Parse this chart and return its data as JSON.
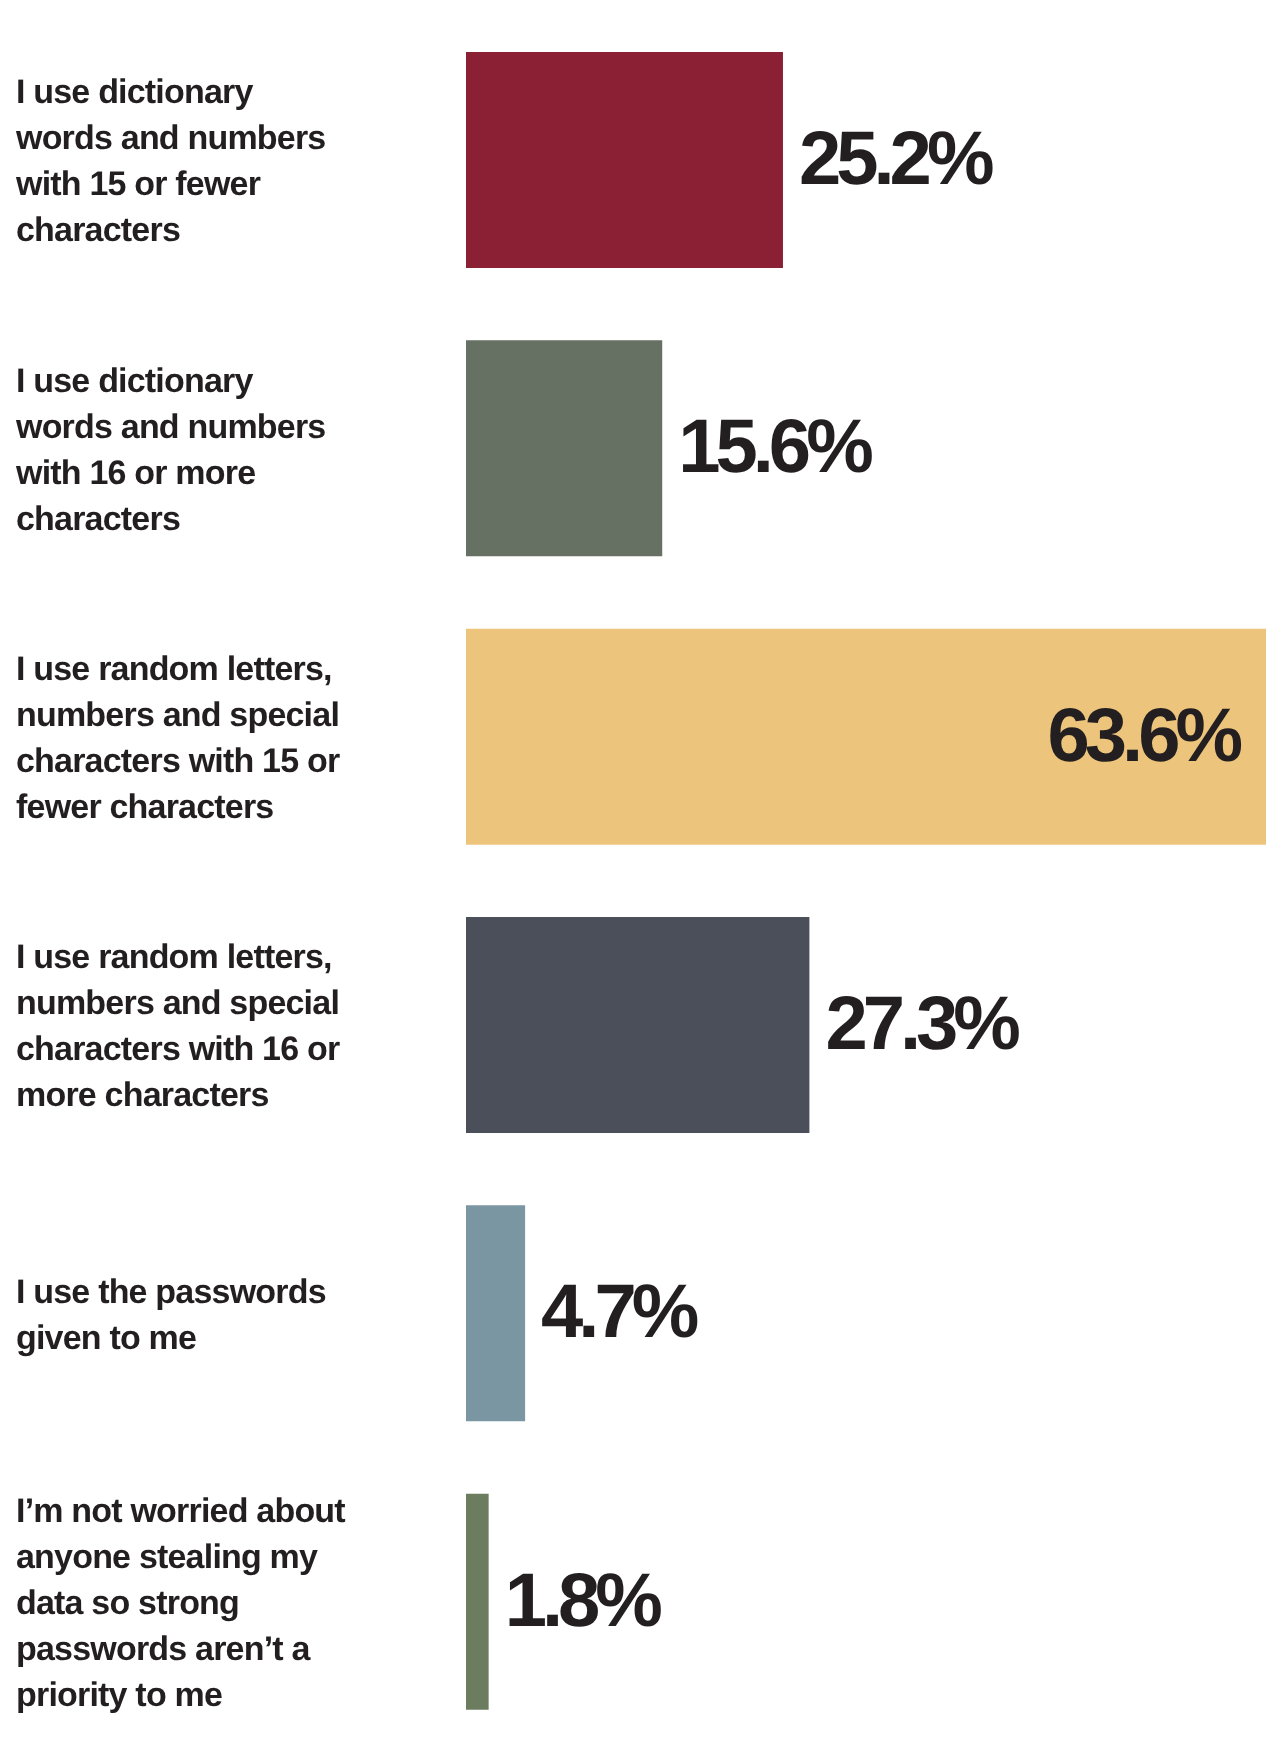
{
  "chart_data": {
    "type": "bar",
    "orientation": "horizontal",
    "categories": [
      "I use dictionary words and numbers with 15 or fewer characters",
      "I use dictionary words and numbers with 16 or more characters",
      "I use random letters, numbers and special characters with 15 or fewer characters",
      "I use random letters, numbers and special characters with 16 or more characters",
      "I use the passwords given to me",
      "I’m not worried about anyone stealing my data so strong passwords aren’t a priority to me"
    ],
    "values": [
      25.2,
      15.6,
      63.6,
      27.3,
      4.7,
      1.8
    ],
    "value_labels": [
      "25.2%",
      "15.6%",
      "63.6%",
      "27.3%",
      "4.7%",
      "1.8%"
    ],
    "colors": [
      "#8b2035",
      "#667063",
      "#ecc47c",
      "#4a4f59",
      "#7b96a3",
      "#6b7c5f"
    ],
    "grid": false,
    "legend": false
  }
}
